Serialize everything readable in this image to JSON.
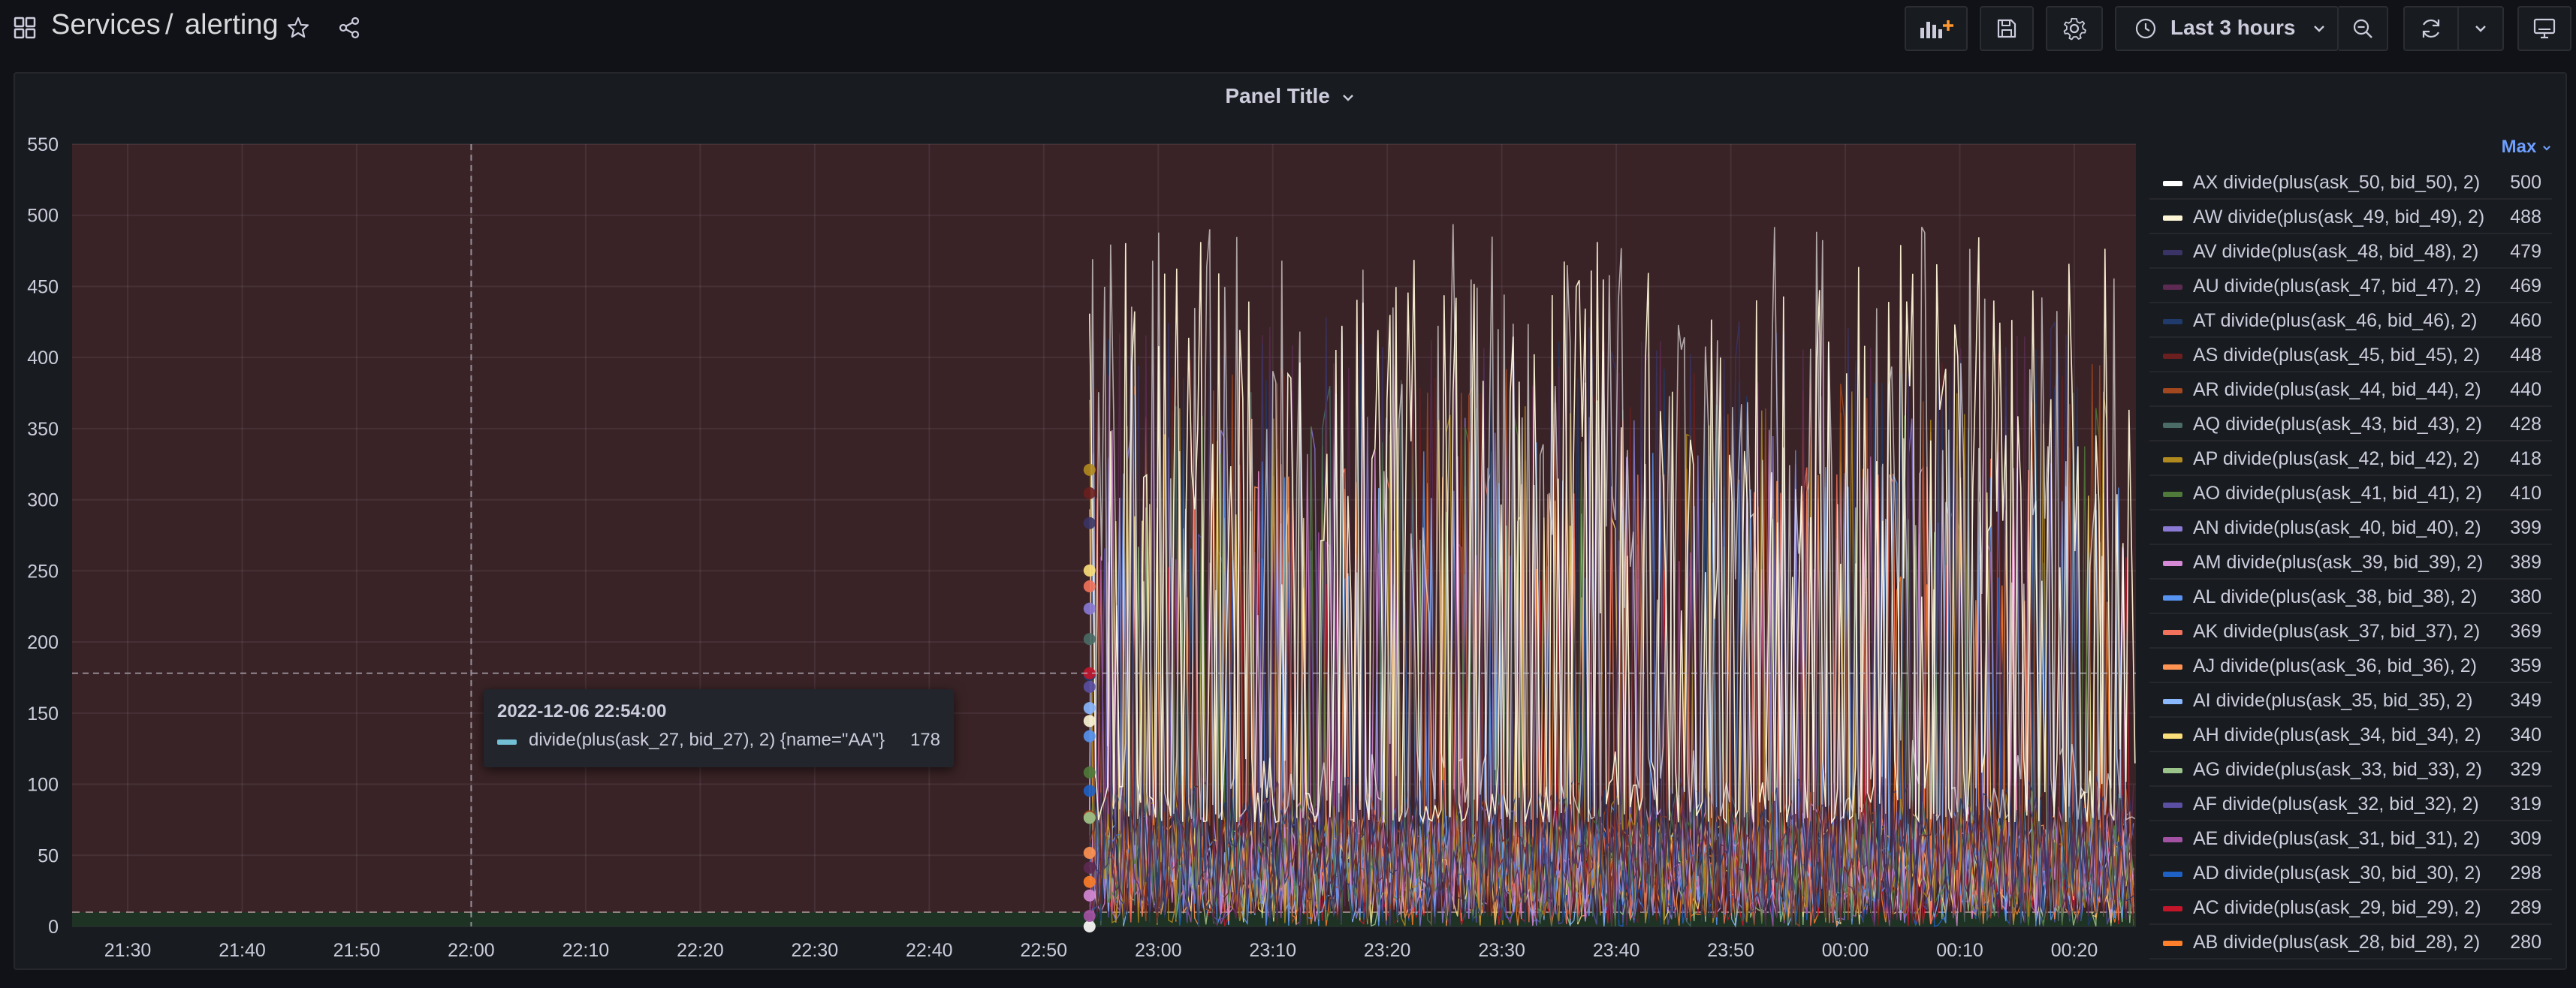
{
  "breadcrumb": {
    "folder": "Services",
    "separator": "/",
    "dashboard": "alerting"
  },
  "time_picker": {
    "label": "Last 3 hours"
  },
  "panel": {
    "title": "Panel Title"
  },
  "tooltip": {
    "time": "2022-12-06 22:54:00",
    "series": "divide(plus(ask_27, bid_27), 2) {name=\"AA\"}",
    "value": "178"
  },
  "legend": {
    "header": "Max",
    "items": [
      {
        "name": "AX divide(plus(ask_50, bid_50), 2)",
        "value": "500",
        "color": "#ffffff"
      },
      {
        "name": "AW divide(plus(ask_49, bid_49), 2)",
        "value": "488",
        "color": "#fdf6d6"
      },
      {
        "name": "AV divide(plus(ask_48, bid_48), 2)",
        "value": "479",
        "color": "#3a3466"
      },
      {
        "name": "AU divide(plus(ask_47, bid_47), 2)",
        "value": "469",
        "color": "#5c2a52"
      },
      {
        "name": "AT divide(plus(ask_46, bid_46), 2)",
        "value": "460",
        "color": "#1f3a6b"
      },
      {
        "name": "AS divide(plus(ask_45, bid_45), 2)",
        "value": "448",
        "color": "#6b1f1f"
      },
      {
        "name": "AR divide(plus(ask_44, bid_44), 2)",
        "value": "440",
        "color": "#a3471f"
      },
      {
        "name": "AQ divide(plus(ask_43, bid_43), 2)",
        "value": "428",
        "color": "#4a6b66"
      },
      {
        "name": "AP divide(plus(ask_42, bid_42), 2)",
        "value": "418",
        "color": "#b08a1f"
      },
      {
        "name": "AO divide(plus(ask_41, bid_41), 2)",
        "value": "410",
        "color": "#4f7a3a"
      },
      {
        "name": "AN divide(plus(ask_40, bid_40), 2)",
        "value": "399",
        "color": "#8a7ad6"
      },
      {
        "name": "AM divide(plus(ask_39, bid_39), 2)",
        "value": "389",
        "color": "#d68ad6"
      },
      {
        "name": "AL divide(plus(ask_38, bid_38), 2)",
        "value": "380",
        "color": "#5794f2"
      },
      {
        "name": "AK divide(plus(ask_37, bid_37), 2)",
        "value": "369",
        "color": "#f2725c"
      },
      {
        "name": "AJ divide(plus(ask_36, bid_36), 2)",
        "value": "359",
        "color": "#ff9352"
      },
      {
        "name": "AI divide(plus(ask_35, bid_35), 2)",
        "value": "349",
        "color": "#8ab8ff"
      },
      {
        "name": "AH divide(plus(ask_34, bid_34), 2)",
        "value": "340",
        "color": "#fade7a"
      },
      {
        "name": "AG divide(plus(ask_33, bid_33), 2)",
        "value": "329",
        "color": "#9ac48a"
      },
      {
        "name": "AF divide(plus(ask_32, bid_32), 2)",
        "value": "319",
        "color": "#5a4fa3"
      },
      {
        "name": "AE divide(plus(ask_31, bid_31), 2)",
        "value": "309",
        "color": "#a352a3"
      },
      {
        "name": "AD divide(plus(ask_30, bid_30), 2)",
        "value": "298",
        "color": "#1f60c4"
      },
      {
        "name": "AC divide(plus(ask_29, bid_29), 2)",
        "value": "289",
        "color": "#c4162a"
      },
      {
        "name": "AB divide(plus(ask_28, bid_28), 2)",
        "value": "280",
        "color": "#ff7f2a"
      }
    ]
  },
  "chart_data": {
    "type": "line",
    "ylim": [
      0,
      550
    ],
    "y_ticks": [
      "0",
      "50",
      "100",
      "150",
      "200",
      "250",
      "300",
      "350",
      "400",
      "450",
      "500",
      "550"
    ],
    "x_ticks": [
      "21:30",
      "21:40",
      "21:50",
      "22:00",
      "22:10",
      "22:20",
      "22:30",
      "22:40",
      "22:50",
      "23:00",
      "23:10",
      "23:20",
      "23:30",
      "23:40",
      "23:50",
      "00:00",
      "00:10",
      "00:20"
    ],
    "threshold_fill": "#3a2326",
    "data_start": "22:54",
    "hover": {
      "x": "22:00",
      "y": 178
    },
    "bottom_threshold": 10
  }
}
